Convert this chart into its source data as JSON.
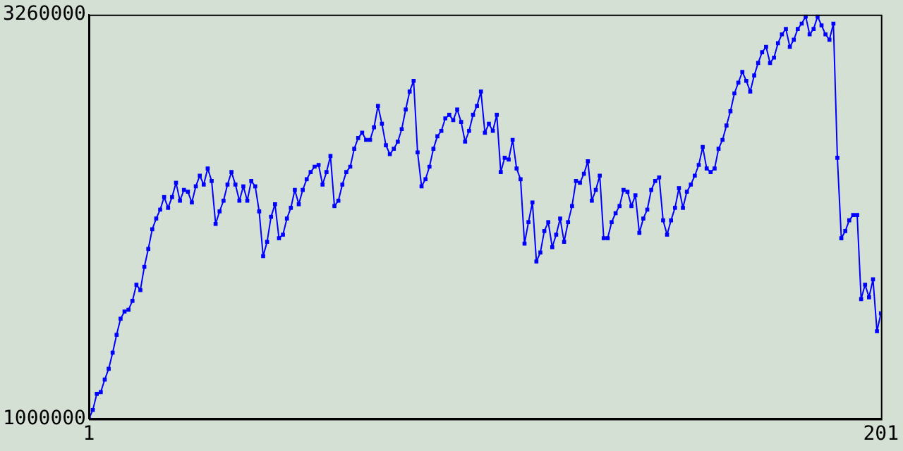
{
  "chart_data": {
    "type": "line",
    "marker": "square",
    "grid": false,
    "legend": false,
    "xlim": [
      1,
      201
    ],
    "xticks": [
      1,
      201
    ],
    "ylim": [
      1000000,
      3260000
    ],
    "yticks": [
      1000000,
      3260000
    ],
    "x": [
      1,
      2,
      3,
      4,
      5,
      6,
      7,
      8,
      9,
      10,
      11,
      12,
      13,
      14,
      15,
      16,
      17,
      18,
      19,
      20,
      21,
      22,
      23,
      24,
      25,
      26,
      27,
      28,
      29,
      30,
      31,
      32,
      33,
      34,
      35,
      36,
      37,
      38,
      39,
      40,
      41,
      42,
      43,
      44,
      45,
      46,
      47,
      48,
      49,
      50,
      51,
      52,
      53,
      54,
      55,
      56,
      57,
      58,
      59,
      60,
      61,
      62,
      63,
      64,
      65,
      66,
      67,
      68,
      69,
      70,
      71,
      72,
      73,
      74,
      75,
      76,
      77,
      78,
      79,
      80,
      81,
      82,
      83,
      84,
      85,
      86,
      87,
      88,
      89,
      90,
      91,
      92,
      93,
      94,
      95,
      96,
      97,
      98,
      99,
      100,
      101,
      102,
      103,
      104,
      105,
      106,
      107,
      108,
      109,
      110,
      111,
      112,
      113,
      114,
      115,
      116,
      117,
      118,
      119,
      120,
      121,
      122,
      123,
      124,
      125,
      126,
      127,
      128,
      129,
      130,
      131,
      132,
      133,
      134,
      135,
      136,
      137,
      138,
      139,
      140,
      141,
      142,
      143,
      144,
      145,
      146,
      147,
      148,
      149,
      150,
      151,
      152,
      153,
      154,
      155,
      156,
      157,
      158,
      159,
      160,
      161,
      162,
      163,
      164,
      165,
      166,
      167,
      168,
      169,
      170,
      171,
      172,
      173,
      174,
      175,
      176,
      177,
      178,
      179,
      180,
      181,
      182,
      183,
      184,
      185,
      186,
      187,
      188,
      189,
      190,
      191,
      192,
      193,
      194,
      195,
      196,
      197,
      198,
      199,
      200,
      201
    ],
    "series": [
      {
        "color": "#0000ff",
        "values": [
          1000000,
          1050000,
          1140000,
          1150000,
          1220000,
          1280000,
          1370000,
          1470000,
          1560000,
          1600000,
          1610000,
          1660000,
          1750000,
          1720000,
          1850000,
          1950000,
          2060000,
          2120000,
          2170000,
          2240000,
          2180000,
          2240000,
          2320000,
          2220000,
          2280000,
          2270000,
          2210000,
          2300000,
          2360000,
          2310000,
          2400000,
          2330000,
          2090000,
          2160000,
          2220000,
          2310000,
          2380000,
          2310000,
          2220000,
          2300000,
          2220000,
          2330000,
          2300000,
          2160000,
          1910000,
          1990000,
          2130000,
          2200000,
          2010000,
          2030000,
          2120000,
          2180000,
          2280000,
          2200000,
          2280000,
          2340000,
          2380000,
          2410000,
          2420000,
          2310000,
          2380000,
          2470000,
          2190000,
          2220000,
          2310000,
          2380000,
          2410000,
          2510000,
          2570000,
          2600000,
          2560000,
          2560000,
          2630000,
          2750000,
          2650000,
          2530000,
          2480000,
          2510000,
          2550000,
          2620000,
          2730000,
          2830000,
          2890000,
          2490000,
          2300000,
          2340000,
          2410000,
          2510000,
          2580000,
          2610000,
          2680000,
          2700000,
          2670000,
          2730000,
          2660000,
          2550000,
          2610000,
          2700000,
          2750000,
          2830000,
          2600000,
          2650000,
          2610000,
          2700000,
          2380000,
          2460000,
          2450000,
          2560000,
          2400000,
          2340000,
          1980000,
          2100000,
          2210000,
          1880000,
          1930000,
          2050000,
          2100000,
          1960000,
          2030000,
          2120000,
          1990000,
          2100000,
          2190000,
          2330000,
          2320000,
          2370000,
          2440000,
          2220000,
          2280000,
          2360000,
          2010000,
          2010000,
          2100000,
          2150000,
          2190000,
          2280000,
          2270000,
          2190000,
          2250000,
          2040000,
          2120000,
          2170000,
          2280000,
          2330000,
          2350000,
          2110000,
          2030000,
          2110000,
          2180000,
          2290000,
          2180000,
          2270000,
          2310000,
          2360000,
          2420000,
          2520000,
          2400000,
          2380000,
          2400000,
          2510000,
          2560000,
          2640000,
          2720000,
          2820000,
          2880000,
          2940000,
          2890000,
          2830000,
          2920000,
          2990000,
          3050000,
          3080000,
          2990000,
          3020000,
          3100000,
          3150000,
          3180000,
          3080000,
          3120000,
          3180000,
          3210000,
          3250000,
          3150000,
          3180000,
          3250000,
          3200000,
          3150000,
          3120000,
          3210000,
          2460000,
          2010000,
          2050000,
          2110000,
          2140000,
          2140000,
          1670000,
          1750000,
          1680000,
          1780000,
          1490000,
          1590000
        ]
      }
    ]
  }
}
